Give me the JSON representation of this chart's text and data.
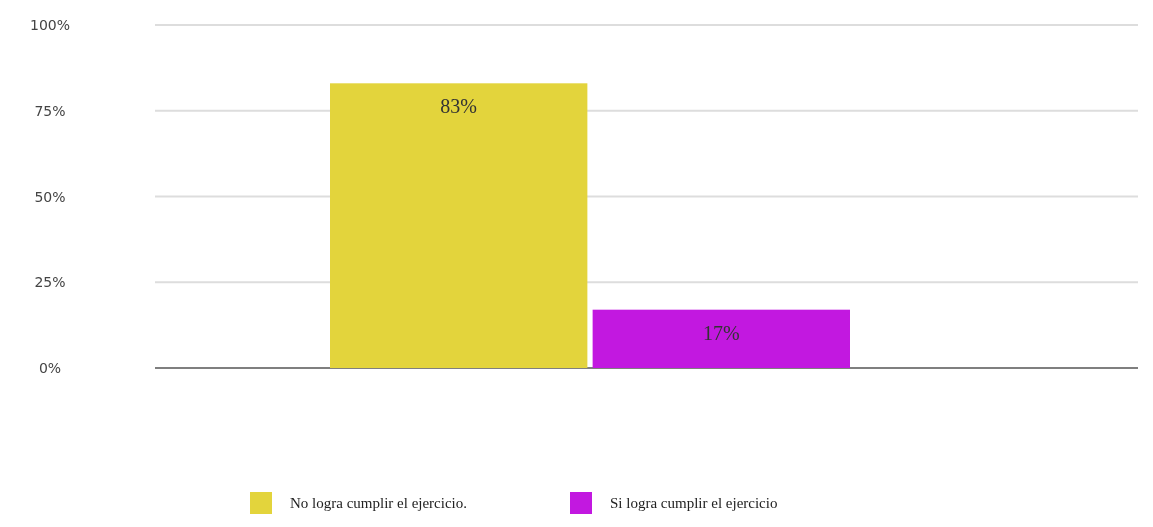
{
  "chart_data": {
    "type": "bar",
    "categories": [
      null
    ],
    "series": [
      {
        "name": "No logra cumplir el ejercicio.",
        "color": "#e3d43c",
        "values": [
          83
        ],
        "value_labels": [
          "83%"
        ]
      },
      {
        "name": "Si logra cumplir el ejercicio",
        "color": "#c218e0",
        "values": [
          17
        ],
        "value_labels": [
          "17%"
        ]
      }
    ],
    "ylim": [
      0,
      100
    ],
    "yticks": [
      {
        "value": 0,
        "label": "0%"
      },
      {
        "value": 25,
        "label": "25%"
      },
      {
        "value": 50,
        "label": "50%"
      },
      {
        "value": 75,
        "label": "75%"
      },
      {
        "value": 100,
        "label": "100%"
      }
    ],
    "grid": "y",
    "legend": "bottom"
  }
}
